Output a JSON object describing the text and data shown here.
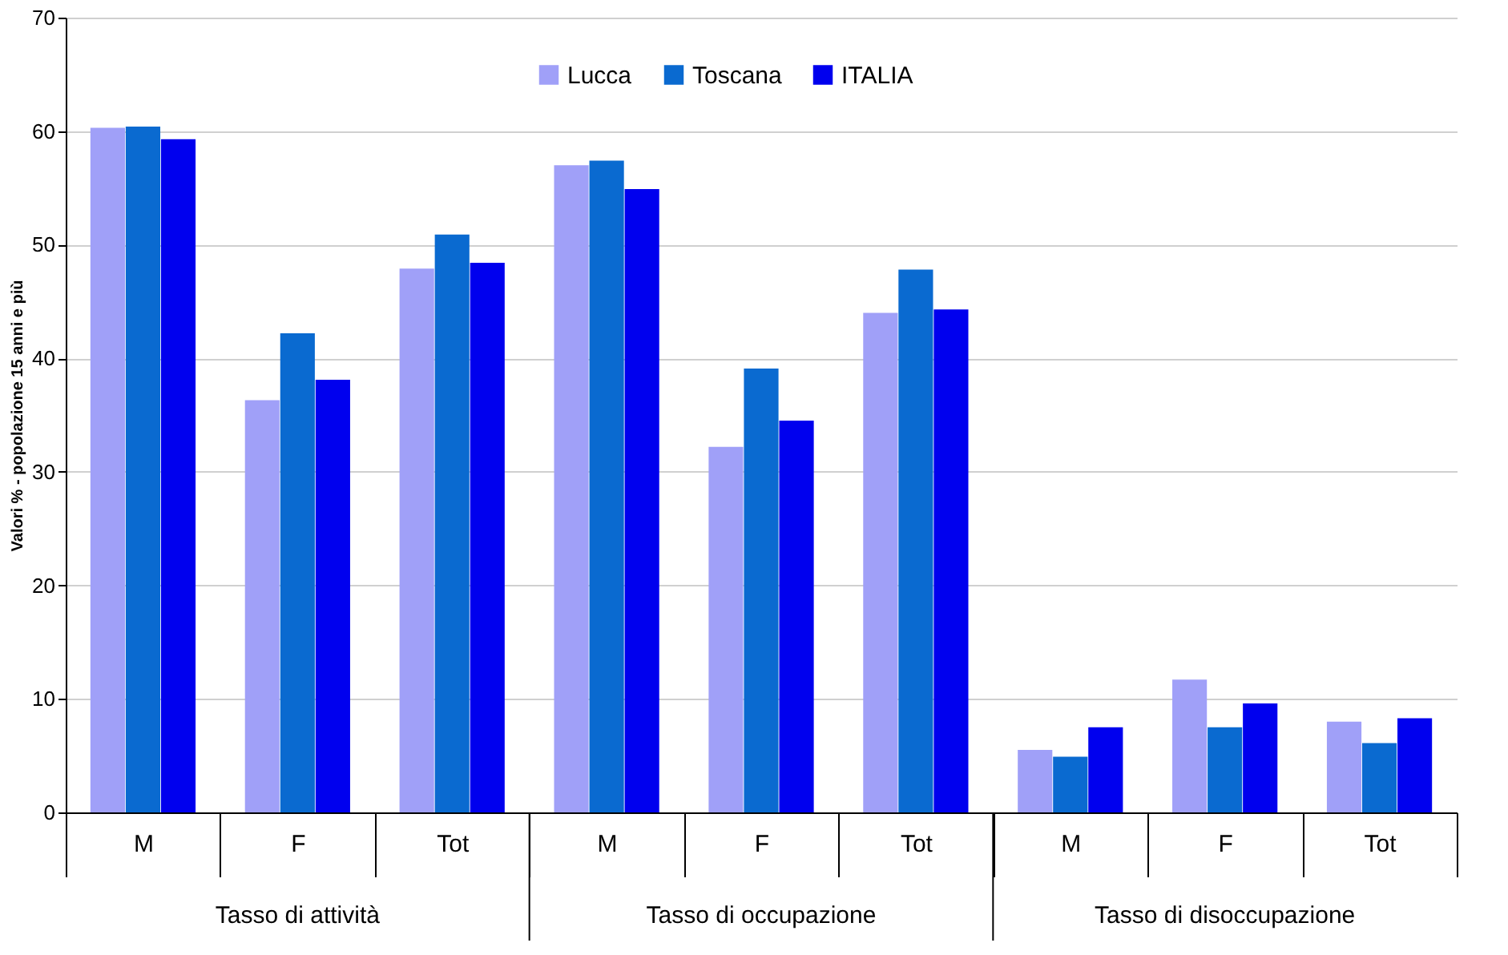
{
  "chart_data": {
    "type": "bar",
    "ylabel": "Valori % - popolazione 15 anni e più",
    "categories": [
      "M",
      "F",
      "Tot",
      "M",
      "F",
      "Tot",
      "M",
      "F",
      "Tot"
    ],
    "annotations": [
      "Tasso di attività",
      "Tasso di occupazione",
      "Tasso di disoccupazione"
    ],
    "series": [
      {
        "name": "Lucca",
        "color": "#a0a0f8",
        "values": [
          60.3,
          36.3,
          47.9,
          57.0,
          32.2,
          44.0,
          5.5,
          11.7,
          8.0
        ]
      },
      {
        "name": "Toscana",
        "color": "#0a6ad0",
        "values": [
          60.4,
          42.2,
          50.9,
          57.4,
          39.1,
          47.8,
          4.9,
          7.5,
          6.1
        ]
      },
      {
        "name": "ITALIA",
        "color": "#0000ee",
        "values": [
          59.3,
          38.1,
          48.4,
          54.9,
          34.5,
          44.3,
          7.5,
          9.6,
          8.3
        ]
      }
    ],
    "ylim": [
      0,
      70
    ],
    "yticks": [
      0,
      10,
      20,
      30,
      40,
      50,
      60,
      70
    ],
    "grid": "y",
    "legend": "top"
  }
}
